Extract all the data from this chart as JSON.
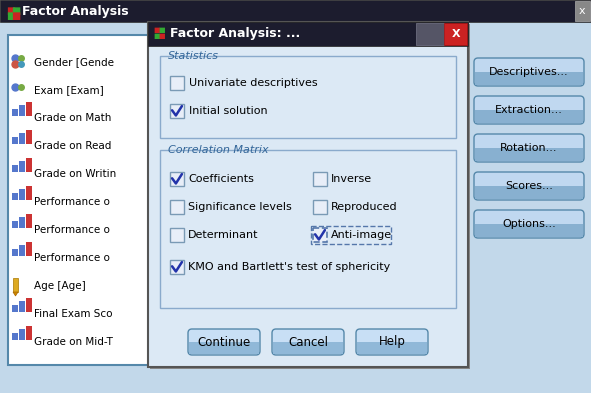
{
  "fig_width": 5.91,
  "fig_height": 3.93,
  "bg_color": "#c2d8ea",
  "outer_window_title": "Factor Analysis",
  "dialog_title": "Factor Analysis: ...",
  "stats_label": "Statistics",
  "corr_label": "Correlation Matrix",
  "stat_items": [
    {
      "text": "Univariate descriptives",
      "checked": false
    },
    {
      "text": "Initial solution",
      "checked": true
    }
  ],
  "corr_items_left": [
    {
      "text": "Coefficients",
      "checked": true
    },
    {
      "text": "Significance levels",
      "checked": false
    },
    {
      "text": "Determinant",
      "checked": false
    }
  ],
  "corr_items_right": [
    {
      "text": "Inverse",
      "checked": false
    },
    {
      "text": "Reproduced",
      "checked": false
    },
    {
      "text": "Anti-image",
      "checked": true,
      "dashed_border": true
    }
  ],
  "kmo_text": "KMO and Bartlett's test of sphericity",
  "kmo_checked": true,
  "buttons": [
    "Continue",
    "Cancel",
    "Help"
  ],
  "side_buttons": [
    "Descriptives...",
    "Extraction...",
    "Rotation...",
    "Scores...",
    "Options..."
  ],
  "list_items": [
    "Gender [Gende",
    "Exam [Exam]",
    "Grade on Math",
    "Grade on Read",
    "Grade on Writin",
    "Performance o",
    "Performance o",
    "Performance o",
    "Age [Age]",
    "Final Exam Sco",
    "Grade on Mid-T"
  ],
  "check_color": "#2233aa",
  "outer_titlebar_color": "#1c1c2e",
  "dialog_titlebar_color": "#1c1c2e",
  "close_btn_color": "#cc2222",
  "dialog_bg": "#dce9f5",
  "panel_bg": "#e8f0f8",
  "group_border": "#8aaacc",
  "group_label_color": "#336699",
  "button_top": "#c8dff5",
  "button_bot": "#90b8d8",
  "button_border": "#5588aa",
  "side_btn_top": "#c0d8f0",
  "side_btn_bot": "#88b0d0",
  "list_bg": "#ddeeff",
  "text_color": "#000000",
  "title_text_color": "#ffffff"
}
